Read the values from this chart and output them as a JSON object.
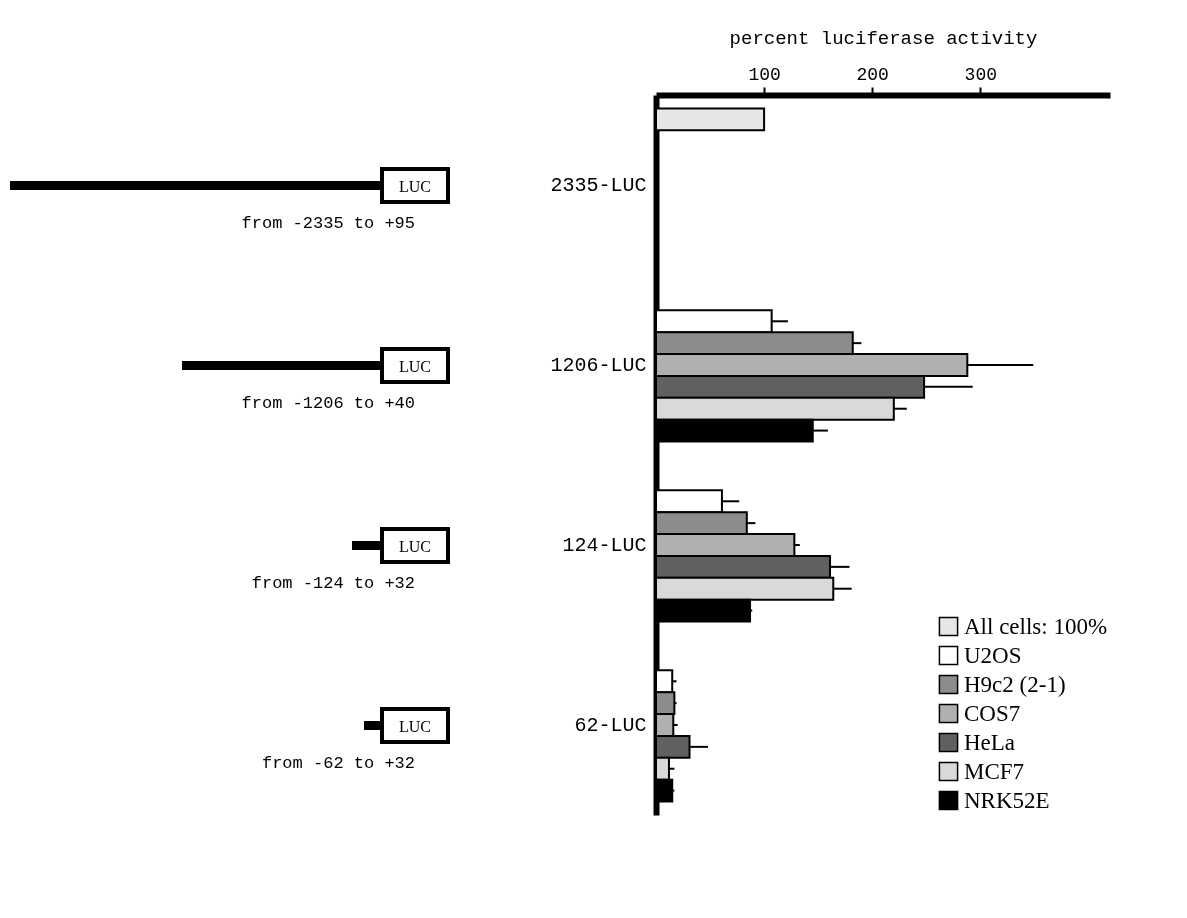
{
  "chart_data": {
    "type": "bar",
    "orientation": "horizontal",
    "xlabel": "percent luciferase activity",
    "categories": [
      "2335-LUC",
      "1206-LUC",
      "124-LUC",
      "62-LUC"
    ],
    "xlim": [
      0,
      420
    ],
    "xticks": [
      100,
      200,
      300
    ],
    "grid": false,
    "legend": "bottom right",
    "annotations": [
      "from -2335 to +95",
      "LUC",
      "from -1206 to +40",
      "LUC",
      "from -124 to +32",
      "LUC",
      "from -62 to +32",
      "LUC"
    ],
    "series": [
      {
        "name": "All cells: 100%",
        "color": "#e6e6e6",
        "values": [
          100,
          null,
          null,
          null
        ]
      },
      {
        "name": "U2OS",
        "color": "#ffffff",
        "values": [
          null,
          107,
          61,
          15
        ],
        "errors": [
          null,
          [
            107,
            122
          ],
          [
            61,
            77
          ],
          [
            15,
            19
          ]
        ]
      },
      {
        "name": "H9c2 (2-1)",
        "color": "#8c8c8c",
        "values": [
          null,
          182,
          84,
          17
        ],
        "errors": [
          null,
          [
            182,
            190
          ],
          [
            84,
            92
          ],
          [
            17,
            19
          ]
        ]
      },
      {
        "name": "COS7",
        "color": "#b0b0b0",
        "values": [
          null,
          288,
          128,
          16
        ],
        "errors": [
          null,
          [
            288,
            349
          ],
          [
            128,
            133
          ],
          [
            16,
            20
          ]
        ]
      },
      {
        "name": "HeLa",
        "color": "#606060",
        "values": [
          null,
          248,
          161,
          31
        ],
        "errors": [
          null,
          [
            248,
            293
          ],
          [
            161,
            179
          ],
          [
            31,
            48
          ]
        ]
      },
      {
        "name": "MCF7",
        "color": "#d9d9d9",
        "values": [
          null,
          220,
          164,
          12
        ],
        "errors": [
          null,
          [
            220,
            232
          ],
          [
            164,
            181
          ],
          [
            12,
            17
          ]
        ]
      },
      {
        "name": "NRK52E",
        "color": "#000000",
        "values": [
          null,
          145,
          87,
          15
        ],
        "errors": [
          null,
          [
            145,
            159
          ],
          [
            87,
            89
          ],
          [
            15,
            17
          ]
        ]
      }
    ]
  }
}
